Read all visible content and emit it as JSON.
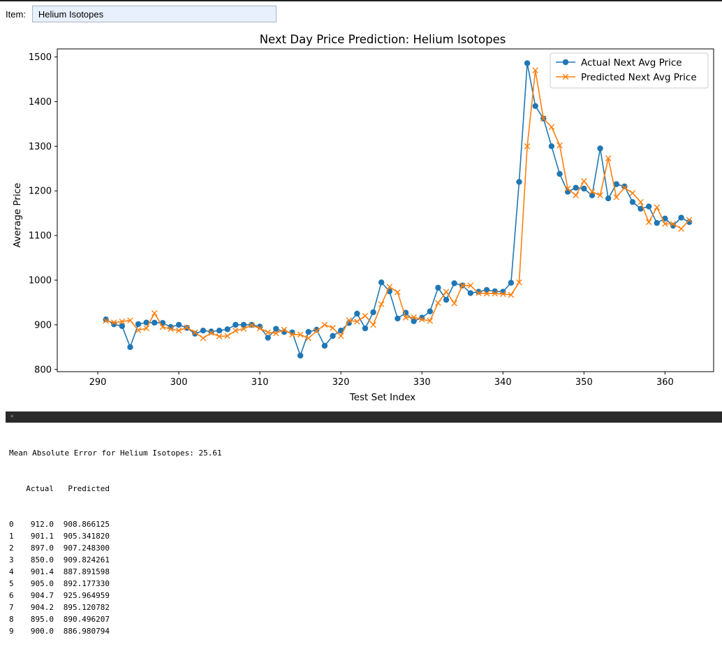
{
  "item": {
    "label": "Item:",
    "value": "Helium Isotopes"
  },
  "colors": {
    "actual": "#1f77b4",
    "predicted": "#ff7f0e"
  },
  "chart_data": {
    "type": "line",
    "title": "Next Day Price Prediction: Helium Isotopes",
    "xlabel": "Test Set Index",
    "ylabel": "Average Price",
    "xlim": [
      285,
      366
    ],
    "ylim": [
      795,
      1518
    ],
    "xticks": [
      290,
      300,
      310,
      320,
      330,
      340,
      350,
      360
    ],
    "yticks": [
      800,
      900,
      1000,
      1100,
      1200,
      1300,
      1400,
      1500
    ],
    "grid": false,
    "legend": "top-right",
    "x": [
      291,
      292,
      293,
      294,
      295,
      296,
      297,
      298,
      299,
      300,
      301,
      302,
      303,
      304,
      305,
      306,
      307,
      308,
      309,
      310,
      311,
      312,
      313,
      314,
      315,
      316,
      317,
      318,
      319,
      320,
      321,
      322,
      323,
      324,
      325,
      326,
      327,
      328,
      329,
      330,
      331,
      332,
      333,
      334,
      335,
      336,
      337,
      338,
      339,
      340,
      341,
      342,
      343,
      344,
      345,
      346,
      347,
      348,
      349,
      350,
      351,
      352,
      353,
      354,
      355,
      356,
      357,
      358,
      359,
      360,
      361,
      362,
      363
    ],
    "series": [
      {
        "name": "Actual Next Avg Price",
        "marker": "circle",
        "color": "#1f77b4",
        "values": [
          912.0,
          901.1,
          897.0,
          850.0,
          901.4,
          905.0,
          904.7,
          904.2,
          895.0,
          900.0,
          893,
          880,
          887,
          885,
          887,
          890,
          900,
          900,
          900,
          896,
          871,
          891,
          884,
          883,
          831,
          884,
          889,
          853,
          875,
          887,
          904,
          925,
          892,
          928,
          995,
          975,
          914,
          927,
          908,
          916,
          930,
          983,
          956,
          993,
          988,
          971,
          974,
          978,
          975,
          974,
          994,
          1220,
          1486,
          1390,
          1362,
          1300,
          1238,
          1198,
          1207,
          1205,
          1190,
          1295,
          1183,
          1215,
          1210,
          1175,
          1160,
          1165,
          1128,
          1138,
          1122,
          1140,
          1130
        ]
      },
      {
        "name": "Predicted Next Avg Price",
        "marker": "x",
        "color": "#ff7f0e",
        "values": [
          908.866125,
          905.34182,
          907.2483,
          909.824261,
          887.891598,
          892.17733,
          925.964959,
          895.120782,
          890.496207,
          886.980794,
          894,
          883,
          870,
          882,
          874,
          875,
          887,
          891,
          899,
          892,
          883,
          881,
          889,
          878,
          878,
          870,
          886,
          900,
          893,
          875,
          910,
          907,
          920,
          900,
          946,
          985,
          973,
          916,
          917,
          912,
          909,
          949,
          974,
          948,
          988,
          988,
          971,
          970,
          970,
          969,
          967,
          995,
          1300,
          1470,
          1362,
          1343,
          1302,
          1205,
          1190,
          1222,
          1198,
          1190,
          1273,
          1186,
          1207,
          1195,
          1175,
          1130,
          1163,
          1126,
          1126,
          1115,
          1135
        ]
      }
    ]
  },
  "output": {
    "mae_line": "Mean Absolute Error for Helium Isotopes: 25.61",
    "columns": [
      "Actual",
      "Predicted"
    ],
    "rows": [
      {
        "index": "0",
        "actual": "912.0",
        "predicted": "908.866125"
      },
      {
        "index": "1",
        "actual": "901.1",
        "predicted": "905.341820"
      },
      {
        "index": "2",
        "actual": "897.0",
        "predicted": "907.248300"
      },
      {
        "index": "3",
        "actual": "850.0",
        "predicted": "909.824261"
      },
      {
        "index": "4",
        "actual": "901.4",
        "predicted": "887.891598"
      },
      {
        "index": "5",
        "actual": "905.0",
        "predicted": "892.177330"
      },
      {
        "index": "6",
        "actual": "904.7",
        "predicted": "925.964959"
      },
      {
        "index": "7",
        "actual": "904.2",
        "predicted": "895.120782"
      },
      {
        "index": "8",
        "actual": "895.0",
        "predicted": "890.496207"
      },
      {
        "index": "9",
        "actual": "900.0",
        "predicted": "886.980794"
      }
    ]
  }
}
